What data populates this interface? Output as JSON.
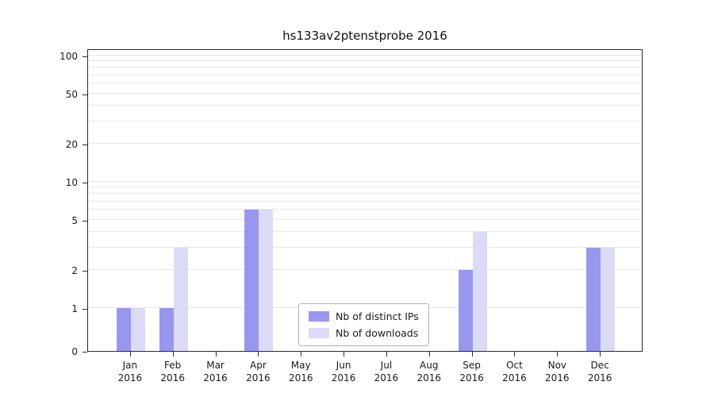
{
  "title": "hs133av2ptenstprobe 2016",
  "chart_data": {
    "type": "bar",
    "scale": "symlog",
    "title": "hs133av2ptenstprobe 2016",
    "categories": [
      "Jan",
      "Feb",
      "Mar",
      "Apr",
      "May",
      "Jun",
      "Jul",
      "Aug",
      "Sep",
      "Oct",
      "Nov",
      "Dec"
    ],
    "year": "2016",
    "series": [
      {
        "name": "Nb of distinct IPs",
        "color": "#9797f0",
        "values": [
          1,
          1,
          0,
          6,
          0,
          0,
          0,
          0,
          2,
          0,
          0,
          3
        ]
      },
      {
        "name": "Nb of downloads",
        "color": "#dbdbf8",
        "values": [
          1,
          3,
          0,
          6,
          0,
          0,
          0,
          0,
          4,
          0,
          0,
          3
        ]
      }
    ],
    "yticks": [
      0,
      1,
      2,
      5,
      10,
      20,
      50,
      100
    ],
    "gridline_values": [
      1,
      2,
      3,
      4,
      5,
      6,
      7,
      8,
      9,
      10,
      20,
      30,
      40,
      50,
      60,
      70,
      80,
      90,
      100
    ],
    "ylim": [
      0,
      100
    ],
    "grid": true,
    "legend_position": "lower center"
  },
  "colors": {
    "gridline": "#e7e7e7",
    "axis": "#2b2b2b",
    "legend_border": "#b3b3b3",
    "background": "#ffffff"
  }
}
